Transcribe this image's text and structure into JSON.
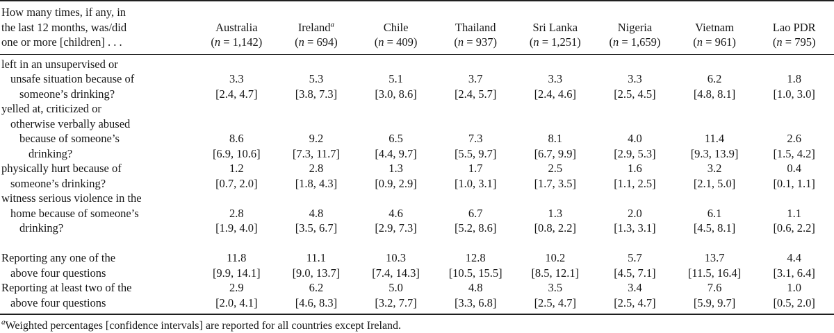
{
  "table": {
    "stub_header_lines": [
      "How many times, if any, in",
      "the last 12 months, was/did",
      "one or more [children] . . ."
    ],
    "columns": [
      {
        "name": "Australia",
        "sup": "",
        "n_text": "(n = 1,142)"
      },
      {
        "name": "Ireland",
        "sup": "a",
        "n_text": "(n = 694)"
      },
      {
        "name": "Chile",
        "sup": "",
        "n_text": "(n = 409)"
      },
      {
        "name": "Thailand",
        "sup": "",
        "n_text": "(n = 937)"
      },
      {
        "name": "Sri Lanka",
        "sup": "",
        "n_text": "(n = 1,251)"
      },
      {
        "name": "Nigeria",
        "sup": "",
        "n_text": "(n = 1,659)"
      },
      {
        "name": "Vietnam",
        "sup": "",
        "n_text": "(n = 961)"
      },
      {
        "name": "Lao PDR",
        "sup": "",
        "n_text": "(n = 795)"
      }
    ],
    "rows": [
      {
        "label_lines": [
          "left in an unsupervised or",
          "unsafe situation because of",
          "someone’s drinking?"
        ],
        "gap_above": false,
        "values": [
          {
            "est": "3.3",
            "ci": "[2.4, 4.7]"
          },
          {
            "est": "5.3",
            "ci": "[3.8, 7.3]"
          },
          {
            "est": "5.1",
            "ci": "[3.0, 8.6]"
          },
          {
            "est": "3.7",
            "ci": "[2.4, 5.7]"
          },
          {
            "est": "3.3",
            "ci": "[2.4, 4.6]"
          },
          {
            "est": "3.3",
            "ci": "[2.5, 4.5]"
          },
          {
            "est": "6.2",
            "ci": "[4.8, 8.1]"
          },
          {
            "est": "1.8",
            "ci": "[1.0, 3.0]"
          }
        ]
      },
      {
        "label_lines": [
          "yelled at, criticized or",
          "otherwise verbally abused",
          "because of someone’s",
          "drinking?"
        ],
        "gap_above": false,
        "values": [
          {
            "est": "8.6",
            "ci": "[6.9, 10.6]"
          },
          {
            "est": "9.2",
            "ci": "[7.3, 11.7]"
          },
          {
            "est": "6.5",
            "ci": "[4.4, 9.7]"
          },
          {
            "est": "7.3",
            "ci": "[5.5, 9.7]"
          },
          {
            "est": "8.1",
            "ci": "[6.7, 9.9]"
          },
          {
            "est": "4.0",
            "ci": "[2.9, 5.3]"
          },
          {
            "est": "11.4",
            "ci": "[9.3, 13.9]"
          },
          {
            "est": "2.6",
            "ci": "[1.5, 4.2]"
          }
        ]
      },
      {
        "label_lines": [
          "physically hurt because of",
          "someone’s drinking?"
        ],
        "gap_above": false,
        "values": [
          {
            "est": "1.2",
            "ci": "[0.7, 2.0]"
          },
          {
            "est": "2.8",
            "ci": "[1.8, 4.3]"
          },
          {
            "est": "1.3",
            "ci": "[0.9, 2.9]"
          },
          {
            "est": "1.7",
            "ci": "[1.0, 3.1]"
          },
          {
            "est": "2.5",
            "ci": "[1.7, 3.5]"
          },
          {
            "est": "1.6",
            "ci": "[1.1, 2.5]"
          },
          {
            "est": "3.2",
            "ci": "[2.1, 5.0]"
          },
          {
            "est": "0.4",
            "ci": "[0.1, 1.1]"
          }
        ]
      },
      {
        "label_lines": [
          "witness serious violence in the",
          "home because of someone’s",
          "drinking?"
        ],
        "gap_above": false,
        "values": [
          {
            "est": "2.8",
            "ci": "[1.9, 4.0]"
          },
          {
            "est": "4.8",
            "ci": "[3.5, 6.7]"
          },
          {
            "est": "4.6",
            "ci": "[2.9, 7.3]"
          },
          {
            "est": "6.7",
            "ci": "[5.2, 8.6]"
          },
          {
            "est": "1.3",
            "ci": "[0.8, 2.2]"
          },
          {
            "est": "2.0",
            "ci": "[1.3, 3.1]"
          },
          {
            "est": "6.1",
            "ci": "[4.5, 8.1]"
          },
          {
            "est": "1.1",
            "ci": "[0.6, 2.2]"
          }
        ]
      },
      {
        "label_lines": [
          "Reporting any one of the",
          "above four questions"
        ],
        "gap_above": true,
        "values": [
          {
            "est": "11.8",
            "ci": "[9.9, 14.1]"
          },
          {
            "est": "11.1",
            "ci": "[9.0, 13.7]"
          },
          {
            "est": "10.3",
            "ci": "[7.4, 14.3]"
          },
          {
            "est": "12.8",
            "ci": "[10.5, 15.5]"
          },
          {
            "est": "10.2",
            "ci": "[8.5, 12.1]"
          },
          {
            "est": "5.7",
            "ci": "[4.5, 7.1]"
          },
          {
            "est": "13.7",
            "ci": "[11.5, 16.4]"
          },
          {
            "est": "4.4",
            "ci": "[3.1, 6.4]"
          }
        ]
      },
      {
        "label_lines": [
          "Reporting at least two of the",
          "above four questions"
        ],
        "gap_above": false,
        "values": [
          {
            "est": "2.9",
            "ci": "[2.0, 4.1]"
          },
          {
            "est": "6.2",
            "ci": "[4.6, 8.3]"
          },
          {
            "est": "5.0",
            "ci": "[3.2, 7.7]"
          },
          {
            "est": "4.8",
            "ci": "[3.3, 6.8]"
          },
          {
            "est": "3.5",
            "ci": "[2.5, 4.7]"
          },
          {
            "est": "3.4",
            "ci": "[2.5, 4.7]"
          },
          {
            "est": "7.6",
            "ci": "[5.9, 9.7]"
          },
          {
            "est": "1.0",
            "ci": "[0.5, 2.0]"
          }
        ]
      }
    ],
    "footnote": {
      "marker": "a",
      "text": "Weighted percentages [confidence intervals] are reported for all countries except Ireland."
    }
  }
}
